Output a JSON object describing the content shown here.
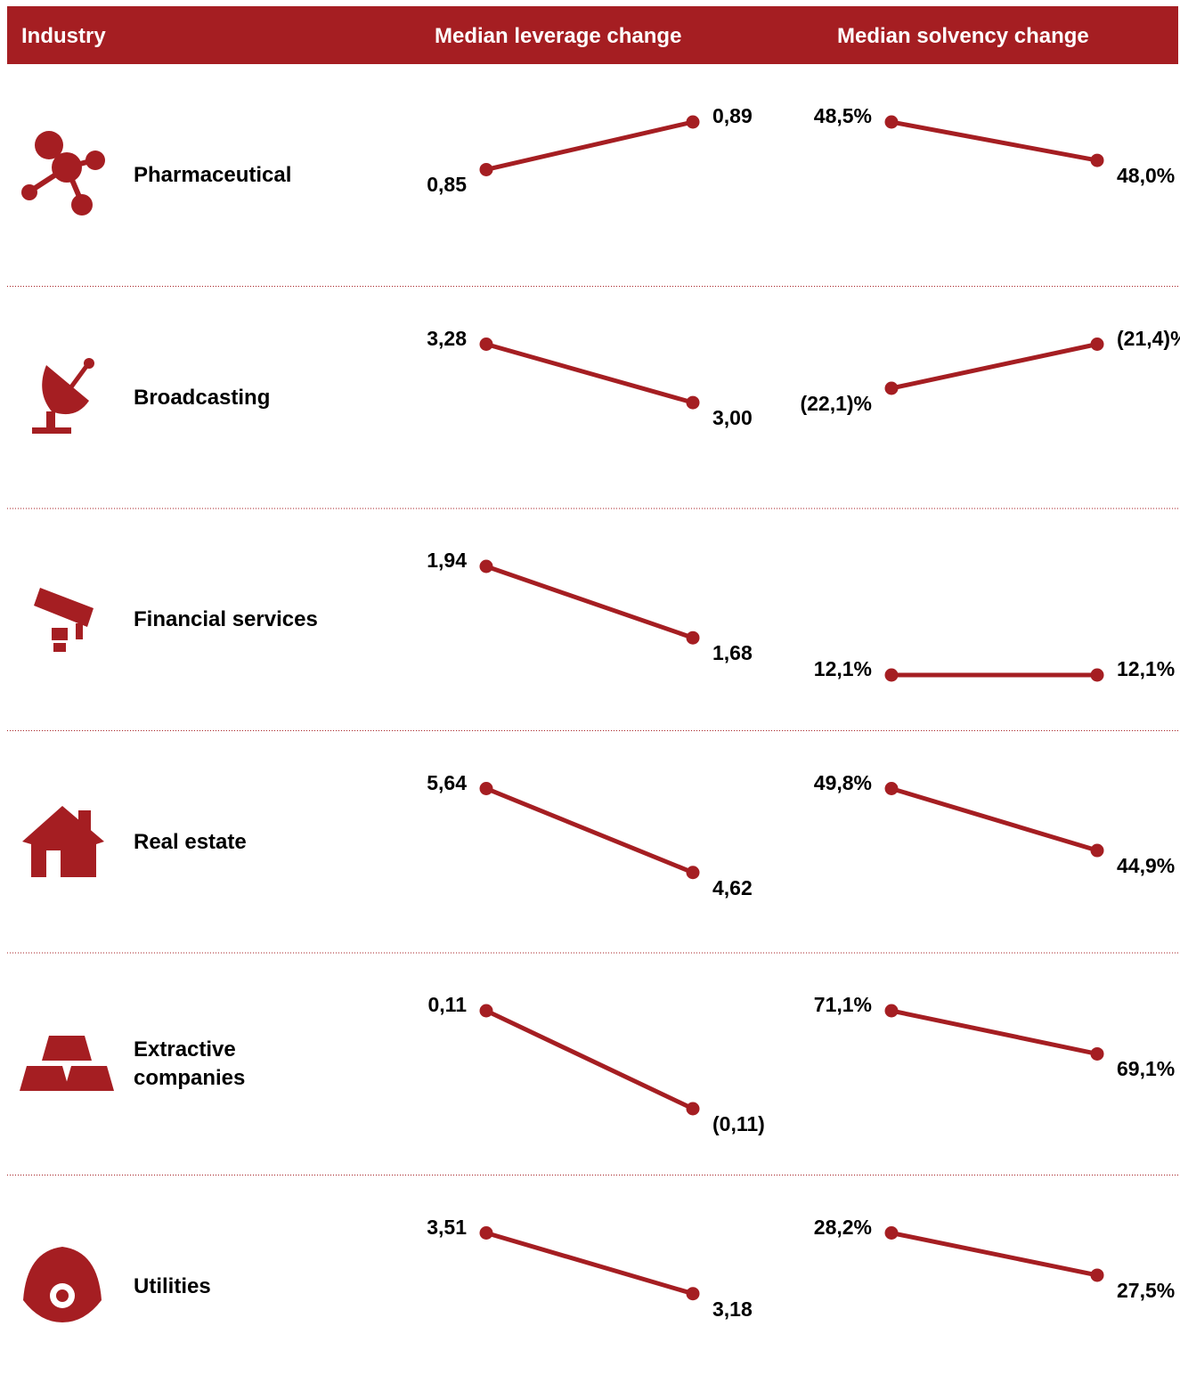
{
  "header": [
    "Industry",
    "Median leverage change",
    "Median solvency change"
  ],
  "rows": [
    {
      "industry": "Pharmaceutical",
      "leverage": {
        "values": [
          0.85,
          0.89
        ],
        "value_labels": [
          "0,85",
          "0,89"
        ]
      },
      "solvency": {
        "values": [
          48.5,
          48.0
        ],
        "value_labels": [
          "48,5%",
          "48,0%"
        ]
      }
    },
    {
      "industry": "Broadcasting",
      "leverage": {
        "values": [
          3.28,
          3.0
        ],
        "value_labels": [
          "3,28",
          "3,00"
        ]
      },
      "solvency": {
        "values": [
          -22.1,
          -21.4
        ],
        "value_labels": [
          "(22,1)%",
          "(21,4)%"
        ]
      }
    },
    {
      "industry": "Financial services",
      "leverage": {
        "values": [
          1.94,
          1.68
        ],
        "value_labels": [
          "1,94",
          "1,68"
        ]
      },
      "solvency": {
        "values": [
          12.1,
          12.1
        ],
        "value_labels": [
          "12,1%",
          "12,1%"
        ]
      }
    },
    {
      "industry": "Real estate",
      "leverage": {
        "values": [
          5.64,
          4.62
        ],
        "value_labels": [
          "5,64",
          "4,62"
        ]
      },
      "solvency": {
        "values": [
          49.8,
          44.9
        ],
        "value_labels": [
          "49,8%",
          "44,9%"
        ]
      }
    },
    {
      "industry": "Extractive companies",
      "leverage": {
        "values": [
          0.11,
          -0.11
        ],
        "value_labels": [
          "0,11",
          "(0,11)"
        ]
      },
      "solvency": {
        "values": [
          71.1,
          69.1
        ],
        "value_labels": [
          "71,1%",
          "69,1%"
        ]
      }
    },
    {
      "industry": "Utilities",
      "leverage": {
        "values": [
          3.51,
          3.18
        ],
        "value_labels": [
          "3,51",
          "3,18"
        ]
      },
      "solvency": {
        "values": [
          28.2,
          27.5
        ],
        "value_labels": [
          "28,2%",
          "27,5%"
        ]
      }
    }
  ]
}
